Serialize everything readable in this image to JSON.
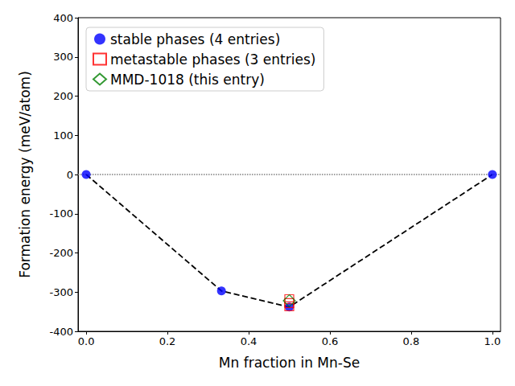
{
  "chart_data": {
    "type": "scatter",
    "x_label": "Mn fraction in Mn-Se",
    "y_label": "Formation energy (meV/atom)",
    "xlim": [
      -0.02,
      1.02
    ],
    "xticks": [
      {
        "value": 0,
        "label": "0.0"
      },
      {
        "value": 0.2,
        "label": "0.2"
      },
      {
        "value": 0.4,
        "label": "0.4"
      },
      {
        "value": 0.6,
        "label": "0.6"
      },
      {
        "value": 0.8,
        "label": "0.8"
      },
      {
        "value": 1,
        "label": "1.0"
      }
    ],
    "ylim": [
      -400,
      400
    ],
    "yticks": [
      -400,
      -300,
      -200,
      -100,
      0,
      100,
      200,
      300,
      400
    ],
    "grid": false,
    "legend": "upper left",
    "series": [
      {
        "type": "line",
        "line_style": "dotted",
        "color": "#808080",
        "x": [
          -0.02,
          1.02
        ],
        "values": [
          0,
          0
        ]
      },
      {
        "type": "line",
        "line_style": "dashed",
        "color": "#000000",
        "x": [
          0,
          0.333,
          0.5,
          1
        ],
        "values": [
          0,
          -297,
          -338,
          0
        ]
      },
      {
        "type": "scatter",
        "name": "stable phases (4 entries)",
        "marker": "circle",
        "color": "#0000ff",
        "x": [
          0,
          0.333,
          0.5,
          1
        ],
        "values": [
          0,
          -297,
          -338,
          0
        ]
      },
      {
        "type": "scatter",
        "name": "metastable phases (3 entries)",
        "marker": "open-square",
        "color": "#ff0000",
        "x": [
          0.5,
          0.5,
          0.5
        ],
        "values": [
          -336,
          -328,
          -318
        ]
      },
      {
        "type": "scatter",
        "name": "MMD-1018 (this entry)",
        "marker": "open-diamond",
        "color": "#008000",
        "x": [
          0.5
        ],
        "values": [
          -322
        ]
      }
    ]
  }
}
